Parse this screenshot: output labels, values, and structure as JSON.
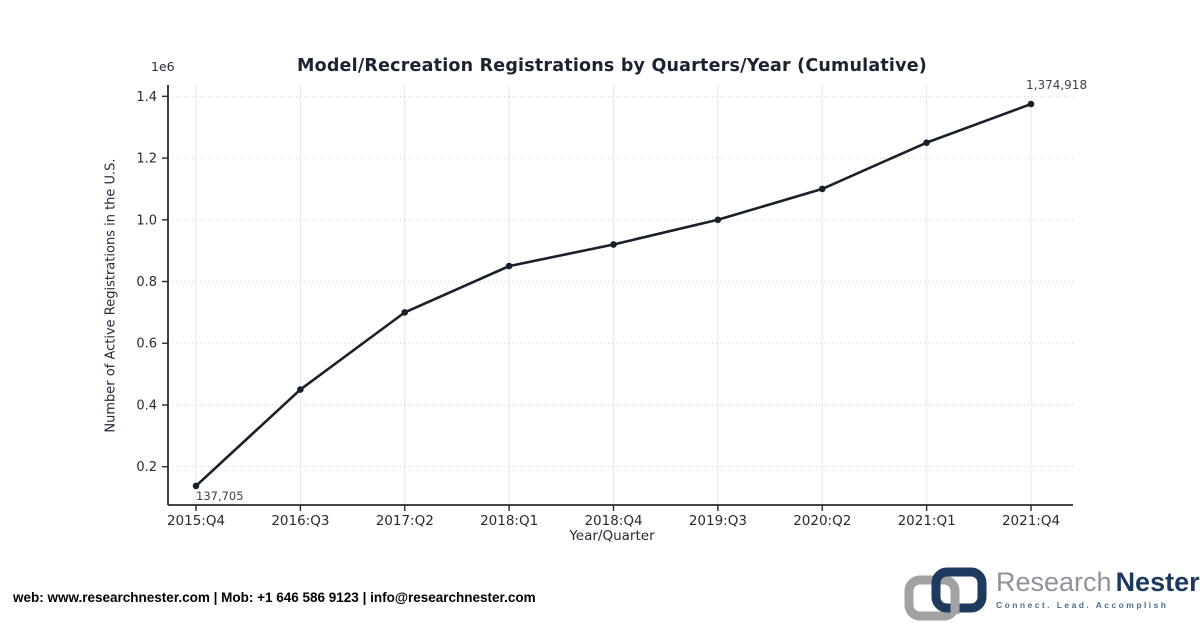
{
  "chart_data": {
    "type": "line",
    "title": "Model/Recreation Registrations by Quarters/Year (Cumulative)",
    "xlabel": "Year/Quarter",
    "ylabel": "Number of Active Registrations in the U.S.",
    "y_offset_label": "1e6",
    "categories": [
      "2015:Q4",
      "2016:Q3",
      "2017:Q2",
      "2018:Q1",
      "2018:Q4",
      "2019:Q3",
      "2020:Q2",
      "2021:Q1",
      "2021:Q4"
    ],
    "values": [
      137705,
      450000,
      700000,
      850000,
      920000,
      1000000,
      1100000,
      1250000,
      1374918
    ],
    "yticks": [
      0.2,
      0.4,
      0.6,
      0.8,
      1.0,
      1.2,
      1.4
    ],
    "ylim": [
      75845,
      1436779
    ],
    "grid": true,
    "legend": "none",
    "line_color": "#191f2b",
    "annotations": {
      "first_point_label": "137,705",
      "last_point_label": "1,374,918"
    }
  },
  "footer": {
    "contact_line": "web: www.researchnester.com | Mob: +1 646 586 9123 | info@researchnester.com",
    "logo": {
      "brand_primary": "Research",
      "brand_secondary": "Nester",
      "tagline": "Connect. Lead. Accomplish",
      "brand_gray_color": "#8e939b",
      "brand_navy_color": "#1d3a5e"
    }
  }
}
